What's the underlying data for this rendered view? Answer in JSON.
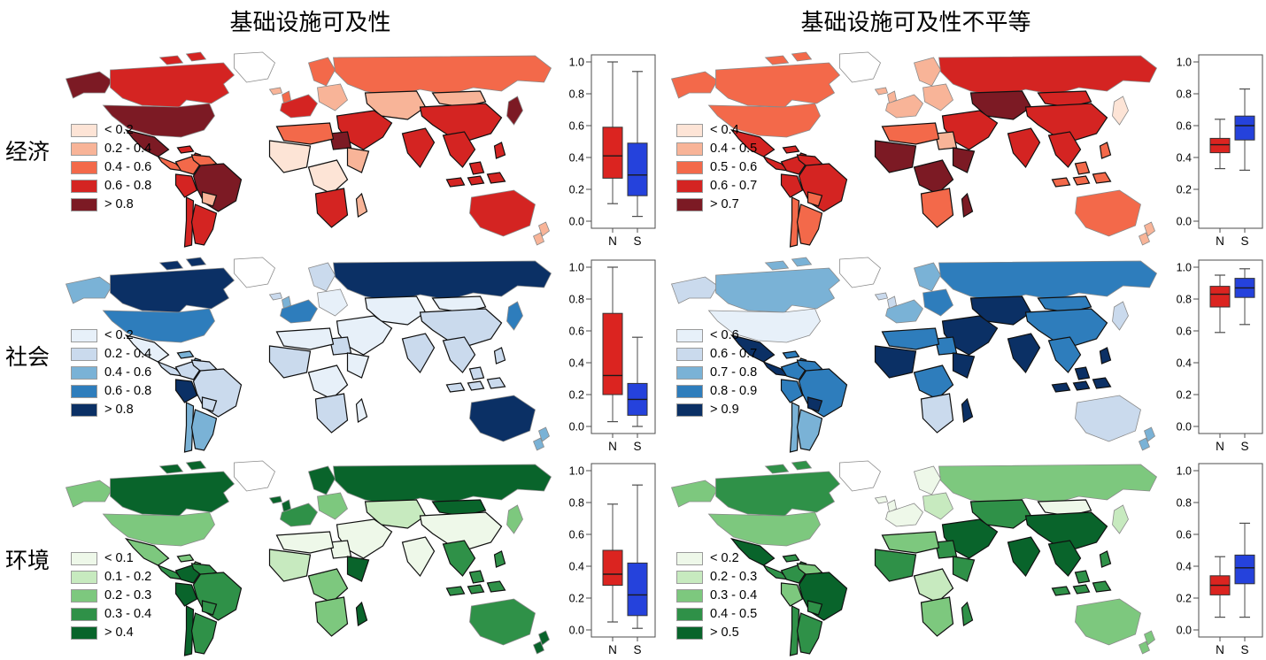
{
  "titles": {
    "left": "基础设施可及性",
    "right": "基础设施可及性不平等"
  },
  "row_labels": [
    "经济",
    "社会",
    "环境"
  ],
  "palettes": {
    "red": [
      "#fde4d6",
      "#f8b498",
      "#f3694a",
      "#d42422",
      "#7c1a24"
    ],
    "blue": [
      "#e7f0f9",
      "#cadaed",
      "#7ab2d6",
      "#2e7dbc",
      "#0b3065"
    ],
    "green": [
      "#eef8e9",
      "#c7eabf",
      "#7dc87e",
      "#2f9148",
      "#09642b"
    ]
  },
  "boxplot_axis": {
    "yticks": [
      "1.0",
      "0.8",
      "0.6",
      "0.4",
      "0.2",
      "0.0"
    ],
    "xlabels": [
      "N",
      "S"
    ],
    "n_color": "#db2420",
    "s_color": "#2542dc",
    "ylim": [
      0,
      1
    ]
  },
  "chart_data": [
    {
      "id": "econ-access",
      "row": 0,
      "col": 0,
      "type": "choropleth_map+boxplot",
      "title": "经济 · 基础设施可及性",
      "palette": "red",
      "legend_bins": [
        "< 0.2",
        "0.2 - 0.4",
        "0.4 - 0.6",
        "0.6 - 0.8",
        "> 0.8"
      ],
      "boxplot": {
        "categories": [
          "N",
          "S"
        ],
        "series": [
          {
            "name": "N",
            "whisker_low": 0.11,
            "q1": 0.27,
            "median": 0.41,
            "q3": 0.59,
            "whisker_high": 1.0
          },
          {
            "name": "S",
            "whisker_low": 0.03,
            "q1": 0.16,
            "median": 0.29,
            "q3": 0.49,
            "whisker_high": 0.94
          }
        ],
        "ylim": [
          0,
          1
        ],
        "yticks": [
          0.0,
          0.2,
          0.4,
          0.6,
          0.8,
          1.0
        ]
      },
      "regions": {
        "alaska": 5,
        "canada": 4,
        "usa": 5,
        "mexico": 5,
        "camerica": 3,
        "caribbean": 4,
        "colombia": 3,
        "venezuela": 3,
        "peru": 4,
        "brazil": 5,
        "bolivia": 2,
        "chile": 4,
        "argentina": 4,
        "iceland": 2,
        "uk": 3,
        "scandinavia": 3,
        "weurope": 4,
        "eeurope": 2,
        "russia": 3,
        "casia": 2,
        "mongolia": 2,
        "china": 4,
        "japan": 5,
        "mideast": 4,
        "egypt": 5,
        "nafrica": 3,
        "wafrica": 1,
        "cafrica": 1,
        "eafrica": 2,
        "safrica": 4,
        "madagascar": 2,
        "india": 4,
        "seasia": 4,
        "indonesia": 4,
        "australia": 4,
        "nz": 2,
        "greenland": 0
      }
    },
    {
      "id": "econ-ineq",
      "row": 0,
      "col": 1,
      "type": "choropleth_map+boxplot",
      "title": "经济 · 基础设施可及性不平等",
      "palette": "red",
      "legend_bins": [
        "< 0.4",
        "0.4 - 0.5",
        "0.5 - 0.6",
        "0.6 - 0.7",
        "> 0.7"
      ],
      "boxplot": {
        "categories": [
          "N",
          "S"
        ],
        "series": [
          {
            "name": "N",
            "whisker_low": 0.33,
            "q1": 0.43,
            "median": 0.48,
            "q3": 0.52,
            "whisker_high": 0.64
          },
          {
            "name": "S",
            "whisker_low": 0.32,
            "q1": 0.51,
            "median": 0.6,
            "q3": 0.66,
            "whisker_high": 0.83
          }
        ],
        "ylim": [
          0,
          1
        ],
        "yticks": [
          0.0,
          0.2,
          0.4,
          0.6,
          0.8,
          1.0
        ]
      },
      "regions": {
        "alaska": 3,
        "canada": 3,
        "usa": 3,
        "mexico": 4,
        "camerica": 4,
        "caribbean": 4,
        "colombia": 4,
        "venezuela": 4,
        "peru": 4,
        "brazil": 4,
        "bolivia": 3,
        "chile": 3,
        "argentina": 3,
        "iceland": 2,
        "uk": 2,
        "scandinavia": 2,
        "weurope": 2,
        "eeurope": 2,
        "russia": 4,
        "casia": 5,
        "mongolia": 4,
        "china": 4,
        "japan": 1,
        "mideast": 4,
        "egypt": 2,
        "nafrica": 3,
        "wafrica": 5,
        "cafrica": 5,
        "eafrica": 5,
        "safrica": 3,
        "madagascar": 5,
        "india": 4,
        "seasia": 4,
        "indonesia": 3,
        "australia": 3,
        "nz": 2,
        "greenland": 0
      }
    },
    {
      "id": "soc-access",
      "row": 1,
      "col": 0,
      "type": "choropleth_map+boxplot",
      "title": "社会 · 基础设施可及性",
      "palette": "blue",
      "legend_bins": [
        "< 0.2",
        "0.2 - 0.4",
        "0.4 - 0.6",
        "0.6 - 0.8",
        "> 0.8"
      ],
      "boxplot": {
        "categories": [
          "N",
          "S"
        ],
        "series": [
          {
            "name": "N",
            "whisker_low": 0.03,
            "q1": 0.2,
            "median": 0.32,
            "q3": 0.71,
            "whisker_high": 1.0
          },
          {
            "name": "S",
            "whisker_low": 0.0,
            "q1": 0.07,
            "median": 0.17,
            "q3": 0.27,
            "whisker_high": 0.56
          }
        ],
        "ylim": [
          0,
          1
        ],
        "yticks": [
          0.0,
          0.2,
          0.4,
          0.6,
          0.8,
          1.0
        ]
      },
      "regions": {
        "alaska": 3,
        "canada": 5,
        "usa": 4,
        "mexico": 1,
        "camerica": 2,
        "caribbean": 3,
        "colombia": 2,
        "venezuela": 2,
        "peru": 5,
        "brazil": 2,
        "bolivia": 2,
        "chile": 3,
        "argentina": 3,
        "iceland": 2,
        "uk": 3,
        "scandinavia": 2,
        "weurope": 4,
        "eeurope": 1,
        "russia": 5,
        "casia": 1,
        "mongolia": 1,
        "china": 2,
        "japan": 4,
        "mideast": 1,
        "egypt": 2,
        "nafrica": 1,
        "wafrica": 2,
        "cafrica": 1,
        "eafrica": 1,
        "safrica": 2,
        "madagascar": 1,
        "india": 2,
        "seasia": 2,
        "indonesia": 2,
        "australia": 5,
        "nz": 3,
        "greenland": 0
      }
    },
    {
      "id": "soc-ineq",
      "row": 1,
      "col": 1,
      "type": "choropleth_map+boxplot",
      "title": "社会 · 基础设施可及性不平等",
      "palette": "blue",
      "legend_bins": [
        "< 0.6",
        "0.6 - 0.7",
        "0.7 - 0.8",
        "0.8 - 0.9",
        "> 0.9"
      ],
      "boxplot": {
        "categories": [
          "N",
          "S"
        ],
        "series": [
          {
            "name": "N",
            "whisker_low": 0.59,
            "q1": 0.75,
            "median": 0.83,
            "q3": 0.88,
            "whisker_high": 0.95
          },
          {
            "name": "S",
            "whisker_low": 0.64,
            "q1": 0.81,
            "median": 0.87,
            "q3": 0.93,
            "whisker_high": 0.99
          }
        ],
        "ylim": [
          0,
          1
        ],
        "yticks": [
          0.0,
          0.2,
          0.4,
          0.6,
          0.8,
          1.0
        ]
      },
      "regions": {
        "alaska": 2,
        "canada": 3,
        "usa": 1,
        "mexico": 5,
        "camerica": 5,
        "caribbean": 4,
        "colombia": 4,
        "venezuela": 4,
        "peru": 4,
        "brazil": 4,
        "bolivia": 5,
        "chile": 3,
        "argentina": 3,
        "iceland": 2,
        "uk": 2,
        "scandinavia": 3,
        "weurope": 3,
        "eeurope": 4,
        "russia": 4,
        "casia": 5,
        "mongolia": 4,
        "china": 4,
        "japan": 2,
        "mideast": 5,
        "egypt": 4,
        "nafrica": 4,
        "wafrica": 5,
        "cafrica": 4,
        "eafrica": 5,
        "safrica": 2,
        "madagascar": 5,
        "india": 5,
        "seasia": 4,
        "indonesia": 5,
        "australia": 2,
        "nz": 3,
        "greenland": 0
      }
    },
    {
      "id": "env-access",
      "row": 2,
      "col": 0,
      "type": "choropleth_map+boxplot",
      "title": "环境 · 基础设施可及性",
      "palette": "green",
      "legend_bins": [
        "< 0.1",
        "0.1 - 0.2",
        "0.2 - 0.3",
        "0.3 - 0.4",
        "> 0.4"
      ],
      "boxplot": {
        "categories": [
          "N",
          "S"
        ],
        "series": [
          {
            "name": "N",
            "whisker_low": 0.05,
            "q1": 0.28,
            "median": 0.35,
            "q3": 0.5,
            "whisker_high": 0.79
          },
          {
            "name": "S",
            "whisker_low": 0.01,
            "q1": 0.09,
            "median": 0.22,
            "q3": 0.42,
            "whisker_high": 0.91
          }
        ],
        "ylim": [
          0,
          1
        ],
        "yticks": [
          0.0,
          0.2,
          0.4,
          0.6,
          0.8,
          1.0
        ]
      },
      "regions": {
        "alaska": 3,
        "canada": 5,
        "usa": 3,
        "mexico": 3,
        "camerica": 4,
        "caribbean": 3,
        "colombia": 5,
        "venezuela": 4,
        "peru": 5,
        "brazil": 4,
        "bolivia": 4,
        "chile": 5,
        "argentina": 4,
        "iceland": 5,
        "uk": 5,
        "scandinavia": 5,
        "weurope": 4,
        "eeurope": 3,
        "russia": 5,
        "casia": 2,
        "mongolia": 5,
        "china": 1,
        "japan": 3,
        "mideast": 1,
        "egypt": 1,
        "nafrica": 1,
        "wafrica": 2,
        "cafrica": 3,
        "eafrica": 5,
        "safrica": 3,
        "madagascar": 5,
        "india": 1,
        "seasia": 4,
        "indonesia": 4,
        "australia": 4,
        "nz": 5,
        "greenland": 0
      }
    },
    {
      "id": "env-ineq",
      "row": 2,
      "col": 1,
      "type": "choropleth_map+boxplot",
      "title": "环境 · 基础设施可及性不平等",
      "palette": "green",
      "legend_bins": [
        "< 0.2",
        "0.2 - 0.3",
        "0.3 - 0.4",
        "0.4 - 0.5",
        "> 0.5"
      ],
      "boxplot": {
        "categories": [
          "N",
          "S"
        ],
        "series": [
          {
            "name": "N",
            "whisker_low": 0.08,
            "q1": 0.22,
            "median": 0.28,
            "q3": 0.34,
            "whisker_high": 0.46
          },
          {
            "name": "S",
            "whisker_low": 0.08,
            "q1": 0.29,
            "median": 0.39,
            "q3": 0.47,
            "whisker_high": 0.67
          }
        ],
        "ylim": [
          0,
          1
        ],
        "yticks": [
          0.0,
          0.2,
          0.4,
          0.6,
          0.8,
          1.0
        ]
      },
      "regions": {
        "alaska": 3,
        "canada": 4,
        "usa": 3,
        "mexico": 5,
        "camerica": 4,
        "caribbean": 4,
        "colombia": 4,
        "venezuela": 3,
        "peru": 3,
        "brazil": 5,
        "bolivia": 4,
        "chile": 4,
        "argentina": 4,
        "iceland": 1,
        "uk": 1,
        "scandinavia": 1,
        "weurope": 1,
        "eeurope": 2,
        "russia": 3,
        "casia": 4,
        "mongolia": 1,
        "china": 5,
        "japan": 2,
        "mideast": 5,
        "egypt": 4,
        "nafrica": 3,
        "wafrica": 4,
        "cafrica": 2,
        "eafrica": 4,
        "safrica": 3,
        "madagascar": 4,
        "india": 5,
        "seasia": 5,
        "indonesia": 4,
        "australia": 3,
        "nz": 3,
        "greenland": 0
      }
    }
  ]
}
